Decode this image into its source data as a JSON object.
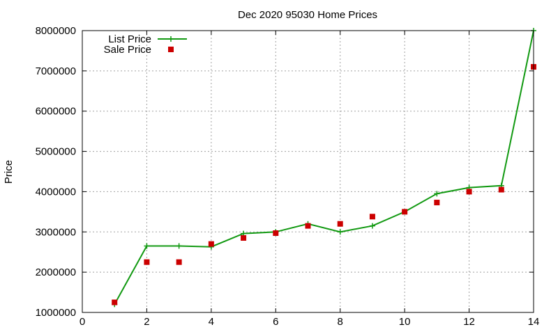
{
  "chart_data": {
    "type": "line",
    "title": "Dec 2020 95030 Home Prices",
    "xlabel": "",
    "ylabel": "Price",
    "xlim": [
      0,
      14
    ],
    "ylim": [
      1000000,
      8000000
    ],
    "xticks": [
      0,
      2,
      4,
      6,
      8,
      10,
      12,
      14
    ],
    "yticks": [
      1000000,
      2000000,
      3000000,
      4000000,
      5000000,
      6000000,
      7000000,
      8000000
    ],
    "grid": true,
    "legend_position": "top-left",
    "series": [
      {
        "name": "List Price",
        "style": "line-with-plus-markers",
        "color": "#119911",
        "x": [
          1,
          2,
          3,
          4,
          5,
          6,
          7,
          8,
          9,
          10,
          11,
          12,
          13,
          14
        ],
        "y": [
          1200000,
          2650000,
          2650000,
          2630000,
          2960000,
          3000000,
          3200000,
          3000000,
          3150000,
          3500000,
          3950000,
          4100000,
          4150000,
          8000000
        ]
      },
      {
        "name": "Sale Price",
        "style": "square-markers",
        "color": "#cc0000",
        "x": [
          1,
          2,
          3,
          4,
          5,
          6,
          7,
          8,
          9,
          10,
          11,
          12,
          13,
          14
        ],
        "y": [
          1250000,
          2250000,
          2250000,
          2700000,
          2850000,
          2970000,
          3150000,
          3200000,
          3380000,
          3500000,
          3730000,
          4000000,
          4050000,
          7100000
        ]
      }
    ]
  }
}
